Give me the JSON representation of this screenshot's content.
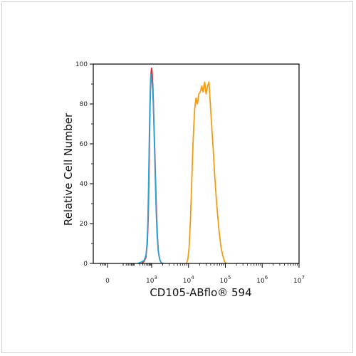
{
  "chart_data": {
    "type": "line",
    "title": "",
    "xlabel": "CD105-ABflo® 594",
    "ylabel": "Relative Cell Number",
    "x_scale": "biexponential",
    "xlim": [
      -100,
      10000000
    ],
    "ylim": [
      0,
      100
    ],
    "y_ticks": [
      0,
      20,
      40,
      60,
      80,
      100
    ],
    "y_tick_labels": [
      "0",
      "20",
      "40",
      "60",
      "80",
      "100"
    ],
    "x_ticks": [
      {
        "value": 0,
        "base": "0",
        "exp": ""
      },
      {
        "value": 1000,
        "base": "10",
        "exp": "3"
      },
      {
        "value": 10000,
        "base": "10",
        "exp": "4"
      },
      {
        "value": 100000,
        "base": "10",
        "exp": "5"
      },
      {
        "value": 1000000,
        "base": "10",
        "exp": "6"
      },
      {
        "value": 10000000,
        "base": "10",
        "exp": "7"
      }
    ],
    "grid": false,
    "legend": "none",
    "series": [
      {
        "color": "#e8252b",
        "points": [
          [
            250,
            0
          ],
          [
            350,
            1
          ],
          [
            450,
            3
          ],
          [
            550,
            10
          ],
          [
            620,
            22
          ],
          [
            680,
            40
          ],
          [
            740,
            60
          ],
          [
            800,
            78
          ],
          [
            850,
            88
          ],
          [
            900,
            94
          ],
          [
            950,
            97
          ],
          [
            1000,
            98
          ],
          [
            1030,
            95
          ],
          [
            1070,
            90
          ],
          [
            1120,
            80
          ],
          [
            1180,
            65
          ],
          [
            1250,
            48
          ],
          [
            1330,
            30
          ],
          [
            1420,
            15
          ],
          [
            1520,
            6
          ],
          [
            1650,
            2
          ],
          [
            1800,
            0.5
          ],
          [
            2000,
            0
          ]
        ]
      },
      {
        "color": "#2aa7d8",
        "points": [
          [
            150,
            0
          ],
          [
            250,
            0.8
          ],
          [
            350,
            1.5
          ],
          [
            450,
            4
          ],
          [
            520,
            9
          ],
          [
            590,
            20
          ],
          [
            650,
            38
          ],
          [
            710,
            58
          ],
          [
            770,
            76
          ],
          [
            820,
            86
          ],
          [
            860,
            92
          ],
          [
            900,
            95
          ],
          [
            940,
            91
          ],
          [
            980,
            93
          ],
          [
            1020,
            92
          ],
          [
            1060,
            87
          ],
          [
            1110,
            80
          ],
          [
            1170,
            65
          ],
          [
            1240,
            47
          ],
          [
            1320,
            28
          ],
          [
            1410,
            14
          ],
          [
            1510,
            6
          ],
          [
            1650,
            2
          ],
          [
            1800,
            0.5
          ],
          [
            2000,
            0
          ]
        ]
      },
      {
        "color": "#f39c12",
        "points": [
          [
            8800,
            0
          ],
          [
            9600,
            2
          ],
          [
            10400,
            8
          ],
          [
            11300,
            22
          ],
          [
            12300,
            42
          ],
          [
            13400,
            62
          ],
          [
            14600,
            77
          ],
          [
            16000,
            83
          ],
          [
            17500,
            80
          ],
          [
            19000,
            85
          ],
          [
            21000,
            86
          ],
          [
            23000,
            89
          ],
          [
            25000,
            86
          ],
          [
            27500,
            91
          ],
          [
            30000,
            85
          ],
          [
            33000,
            89
          ],
          [
            36000,
            91
          ],
          [
            40000,
            77
          ],
          [
            45000,
            62
          ],
          [
            51000,
            45
          ],
          [
            58000,
            30
          ],
          [
            66000,
            18
          ],
          [
            75000,
            9
          ],
          [
            85000,
            4
          ],
          [
            95000,
            1
          ],
          [
            105000,
            0
          ]
        ]
      }
    ]
  }
}
